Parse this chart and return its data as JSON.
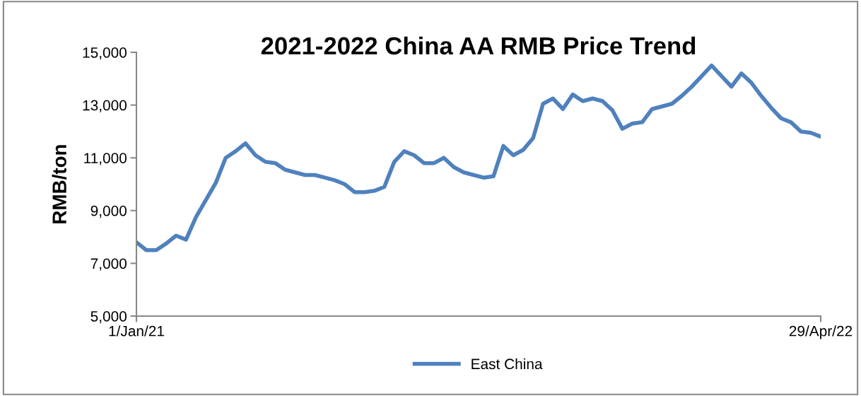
{
  "chart_data": {
    "type": "line",
    "title": "2021-2022 China AA RMB Price Trend",
    "ylabel": "RMB/ton",
    "categories": [
      "1/Jan/21",
      null,
      null,
      null,
      null,
      null,
      null,
      null,
      null,
      null,
      null,
      null,
      null,
      null,
      null,
      null,
      null,
      null,
      null,
      null,
      null,
      null,
      null,
      null,
      null,
      null,
      null,
      null,
      null,
      null,
      null,
      null,
      null,
      null,
      null,
      null,
      null,
      null,
      null,
      null,
      null,
      null,
      null,
      null,
      null,
      null,
      null,
      null,
      null,
      null,
      null,
      null,
      null,
      null,
      null,
      null,
      null,
      null,
      null,
      null,
      null,
      null,
      null,
      null,
      null,
      null,
      null,
      null,
      null,
      "29/Apr/22"
    ],
    "series": [
      {
        "name": "East China",
        "color": "#4f81bd",
        "values": [
          7800,
          7500,
          7500,
          7750,
          8050,
          7900,
          8750,
          9400,
          10050,
          11000,
          11250,
          11550,
          11100,
          10850,
          10800,
          10550,
          10450,
          10350,
          10350,
          10250,
          10150,
          10000,
          9700,
          9700,
          9750,
          9900,
          10850,
          11250,
          11100,
          10800,
          10800,
          11000,
          10650,
          10450,
          10350,
          10250,
          10300,
          11450,
          11100,
          11300,
          11750,
          13050,
          13250,
          12850,
          13400,
          13150,
          13250,
          13150,
          12800,
          12100,
          12300,
          12350,
          12850,
          12950,
          13050,
          13350,
          13700,
          14100,
          14500,
          14100,
          13700,
          14200,
          13850,
          13350,
          12900,
          12500,
          12350,
          12000,
          11950,
          11800
        ]
      }
    ],
    "ylim": [
      5000,
      15000
    ],
    "yticks": [
      {
        "value": 5000,
        "label": "5,000"
      },
      {
        "value": 7000,
        "label": "7,000"
      },
      {
        "value": 9000,
        "label": "9,000"
      },
      {
        "value": 11000,
        "label": "11,000"
      },
      {
        "value": 13000,
        "label": "13,000"
      },
      {
        "value": 15000,
        "label": "15,000"
      }
    ],
    "legend": "bottom",
    "grid": false
  }
}
